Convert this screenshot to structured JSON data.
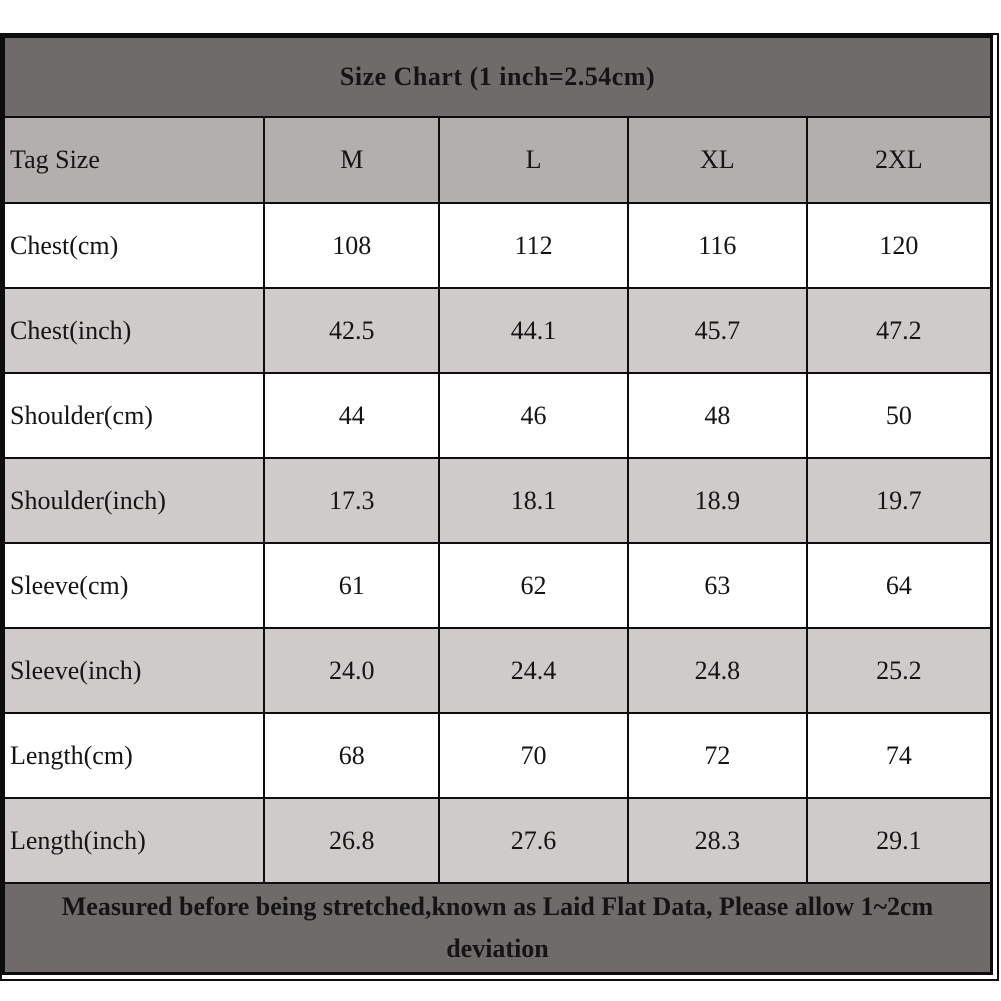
{
  "chart_data": {
    "type": "table",
    "title": "Size Chart (1 inch=2.54cm)",
    "columns": [
      "Tag Size",
      "M",
      "L",
      "XL",
      "2XL"
    ],
    "rows": [
      {
        "label": "Chest(cm)",
        "values": [
          "108",
          "112",
          "116",
          "120"
        ]
      },
      {
        "label": "Chest(inch)",
        "values": [
          "42.5",
          "44.1",
          "45.7",
          "47.2"
        ]
      },
      {
        "label": "Shoulder(cm)",
        "values": [
          "44",
          "46",
          "48",
          "50"
        ]
      },
      {
        "label": "Shoulder(inch)",
        "values": [
          "17.3",
          "18.1",
          "18.9",
          "19.7"
        ]
      },
      {
        "label": "Sleeve(cm)",
        "values": [
          "61",
          "62",
          "63",
          "64"
        ]
      },
      {
        "label": "Sleeve(inch)",
        "values": [
          "24.0",
          "24.4",
          "24.8",
          "25.2"
        ]
      },
      {
        "label": "Length(cm)",
        "values": [
          "68",
          "70",
          "72",
          "74"
        ]
      },
      {
        "label": "Length(inch)",
        "values": [
          "26.8",
          "27.6",
          "28.3",
          "29.1"
        ]
      }
    ],
    "note": "Measured before being stretched,known as Laid Flat Data, Please allow 1~2cm deviation"
  },
  "colors": {
    "title_bg": "#6f6b6a",
    "column_header_bg": "#b2afae",
    "row_bg": "#ffffff",
    "row_alt_bg": "#cecbca",
    "border": "#0d0d0d",
    "title_text": "#f8f6f4",
    "cell_text": "#141414"
  }
}
